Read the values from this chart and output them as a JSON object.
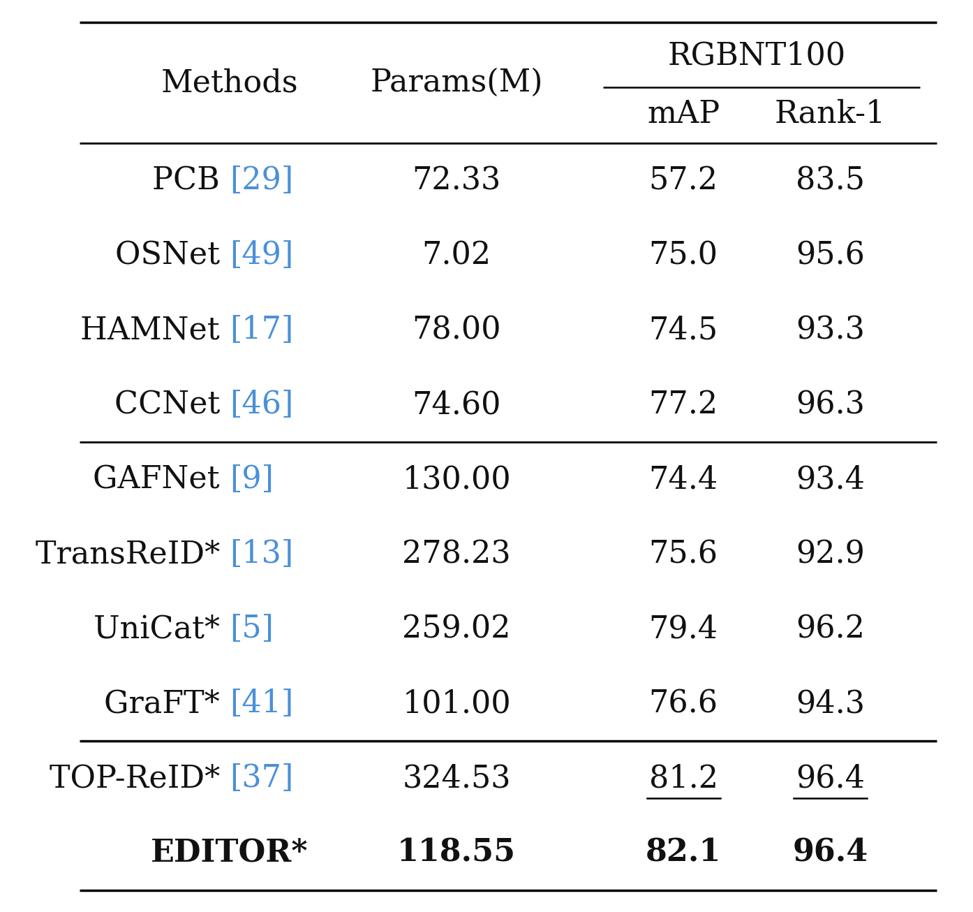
{
  "col_header_top": "RGBNT100",
  "col_headers": [
    "Methods",
    "Params(M)",
    "mAP",
    "Rank-1"
  ],
  "rows": [
    {
      "method": "PCB",
      "ref": "29",
      "params": "72.33",
      "mAP": "57.2",
      "rank1": "83.5",
      "bold_mAP": false,
      "bold_rank1": false,
      "underline_mAP": false,
      "underline_rank1": false
    },
    {
      "method": "OSNet",
      "ref": "49",
      "params": "7.02",
      "mAP": "75.0",
      "rank1": "95.6",
      "bold_mAP": false,
      "bold_rank1": false,
      "underline_mAP": false,
      "underline_rank1": false
    },
    {
      "method": "HAMNet",
      "ref": "17",
      "params": "78.00",
      "mAP": "74.5",
      "rank1": "93.3",
      "bold_mAP": false,
      "bold_rank1": false,
      "underline_mAP": false,
      "underline_rank1": false
    },
    {
      "method": "CCNet",
      "ref": "46",
      "params": "74.60",
      "mAP": "77.2",
      "rank1": "96.3",
      "bold_mAP": false,
      "bold_rank1": false,
      "underline_mAP": false,
      "underline_rank1": false
    },
    {
      "method": "GAFNet",
      "ref": "9",
      "params": "130.00",
      "mAP": "74.4",
      "rank1": "93.4",
      "bold_mAP": false,
      "bold_rank1": false,
      "underline_mAP": false,
      "underline_rank1": false
    },
    {
      "method": "TransReID*",
      "ref": "13",
      "params": "278.23",
      "mAP": "75.6",
      "rank1": "92.9",
      "bold_mAP": false,
      "bold_rank1": false,
      "underline_mAP": false,
      "underline_rank1": false
    },
    {
      "method": "UniCat*",
      "ref": "5",
      "params": "259.02",
      "mAP": "79.4",
      "rank1": "96.2",
      "bold_mAP": false,
      "bold_rank1": false,
      "underline_mAP": false,
      "underline_rank1": false
    },
    {
      "method": "GraFT*",
      "ref": "41",
      "params": "101.00",
      "mAP": "76.6",
      "rank1": "94.3",
      "bold_mAP": false,
      "bold_rank1": false,
      "underline_mAP": false,
      "underline_rank1": false
    },
    {
      "method": "TOP-ReID*",
      "ref": "37",
      "params": "324.53",
      "mAP": "81.2",
      "rank1": "96.4",
      "bold_mAP": false,
      "bold_rank1": false,
      "underline_mAP": true,
      "underline_rank1": true
    },
    {
      "method": "EDITOR*",
      "ref": "",
      "params": "118.55",
      "mAP": "82.1",
      "rank1": "96.4",
      "bold_mAP": true,
      "bold_rank1": true,
      "underline_mAP": false,
      "underline_rank1": false
    }
  ],
  "group_separator_after_row": 4,
  "second_separator_after_row": 8,
  "ref_color": "#4A90D9",
  "text_color": "#111111",
  "bg_color": "#ffffff",
  "fontsize": 32,
  "header_fontsize": 32
}
